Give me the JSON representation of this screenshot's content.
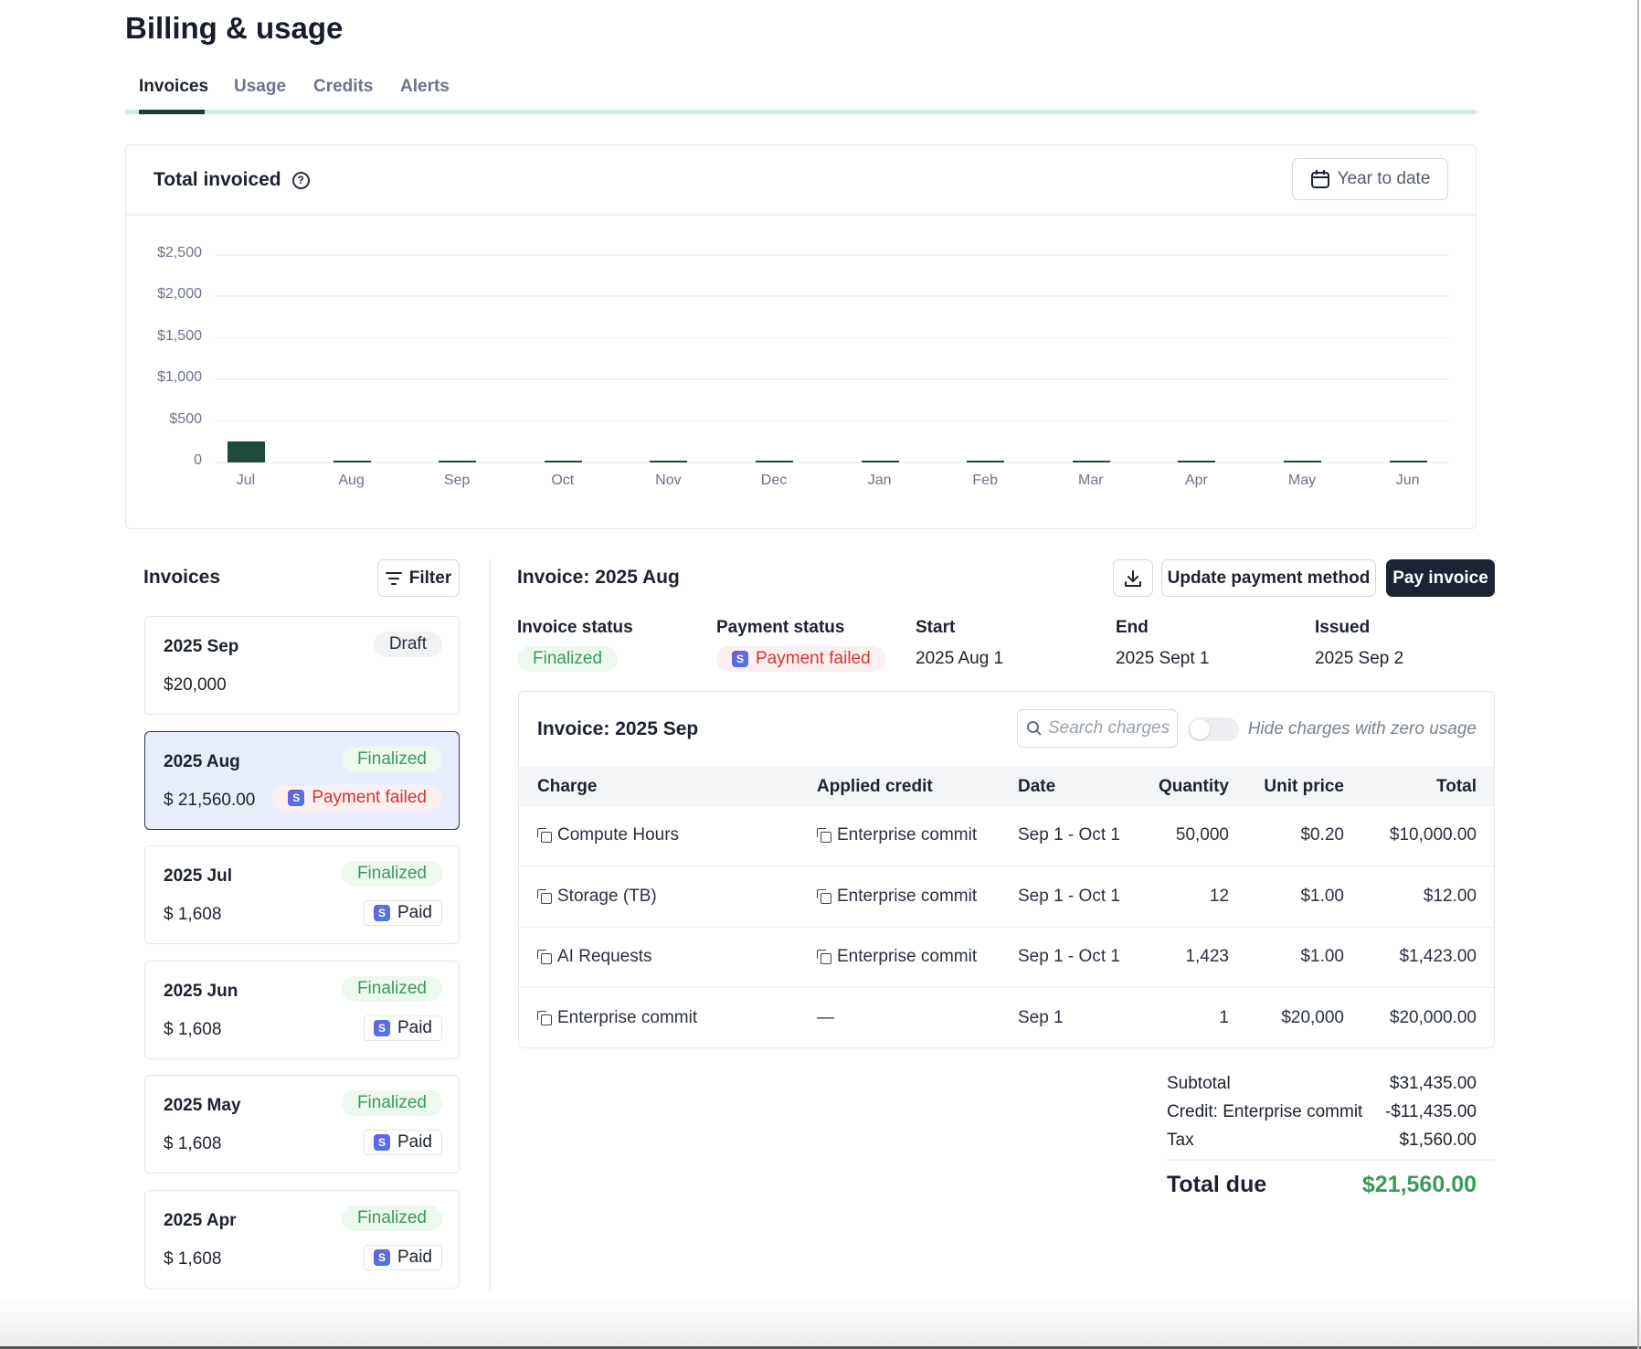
{
  "page": {
    "title": "Billing & usage"
  },
  "tabs": [
    {
      "label": "Invoices",
      "active": true
    },
    {
      "label": "Usage"
    },
    {
      "label": "Credits"
    },
    {
      "label": "Alerts"
    }
  ],
  "chart_card": {
    "title": "Total invoiced",
    "range_button": "Year to date"
  },
  "chart_data": {
    "type": "bar",
    "title": "Total invoiced",
    "categories": [
      "Jul",
      "Aug",
      "Sep",
      "Oct",
      "Nov",
      "Dec",
      "Jan",
      "Feb",
      "Mar",
      "Apr",
      "May",
      "Jun"
    ],
    "values": [
      250,
      5,
      5,
      5,
      5,
      5,
      5,
      5,
      5,
      5,
      15,
      5
    ],
    "y_ticks": [
      "0",
      "$500",
      "$1,000",
      "$1,500",
      "$2,000",
      "$2,500"
    ],
    "y_tick_values": [
      0,
      500,
      1000,
      1500,
      2000,
      2500
    ],
    "ylim": [
      0,
      2500
    ],
    "grid": true,
    "bar_color": "#1f4a3e"
  },
  "invoices_panel": {
    "title": "Invoices",
    "filter_label": "Filter",
    "items": [
      {
        "month": "2025 Sep",
        "amount": "$20,000",
        "status": "Draft",
        "payment": ""
      },
      {
        "month": "2025 Aug",
        "amount": "$ 21,560.00",
        "status": "Finalized",
        "payment": "Payment failed",
        "selected": true
      },
      {
        "month": "2025 Jul",
        "amount": "$ 1,608",
        "status": "Finalized",
        "payment": "Paid"
      },
      {
        "month": "2025 Jun",
        "amount": "$ 1,608",
        "status": "Finalized",
        "payment": "Paid"
      },
      {
        "month": "2025 May",
        "amount": "$ 1,608",
        "status": "Finalized",
        "payment": "Paid"
      },
      {
        "month": "2025 Apr",
        "amount": "$ 1,608",
        "status": "Finalized",
        "payment": "Paid"
      }
    ]
  },
  "detail": {
    "title": "Invoice: 2025 Aug",
    "update_payment_label": "Update payment method",
    "pay_label": "Pay invoice",
    "meta": {
      "invoice_status_label": "Invoice status",
      "invoice_status": "Finalized",
      "payment_status_label": "Payment status",
      "payment_status": "Payment failed",
      "start_label": "Start",
      "start": "2025 Aug 1",
      "end_label": "End",
      "end": "2025 Sept 1",
      "issued_label": "Issued",
      "issued": "2025 Sep 2"
    },
    "charges": {
      "title": "Invoice: 2025 Sep",
      "search_placeholder": "Search charges",
      "hide_zero_label": "Hide charges with zero usage",
      "columns": [
        "Charge",
        "Applied credit",
        "Date",
        "Quantity",
        "Unit price",
        "Total"
      ],
      "rows": [
        {
          "charge": "Compute Hours",
          "credit": "Enterprise commit",
          "date": "Sep 1 - Oct 1",
          "qty": "50,000",
          "unit": "$0.20",
          "total": "$10,000.00"
        },
        {
          "charge": "Storage (TB)",
          "credit": "Enterprise commit",
          "date": "Sep 1 - Oct 1",
          "qty": "12",
          "unit": "$1.00",
          "total": "$12.00"
        },
        {
          "charge": "AI Requests",
          "credit": "Enterprise commit",
          "date": "Sep 1 - Oct 1",
          "qty": "1,423",
          "unit": "$1.00",
          "total": "$1,423.00"
        },
        {
          "charge": "Enterprise commit",
          "credit": "—",
          "date": "Sep 1",
          "qty": "1",
          "unit": "$20,000",
          "total": "$20,000.00"
        }
      ]
    },
    "totals": {
      "subtotal_label": "Subtotal",
      "subtotal": "$31,435.00",
      "credit_label": "Credit: Enterprise commit",
      "credit": "-$11,435.00",
      "tax_label": "Tax",
      "tax": "$1,560.00",
      "total_label": "Total due",
      "total": "$21,560.00",
      "total_color": "#3a9a5c"
    }
  }
}
